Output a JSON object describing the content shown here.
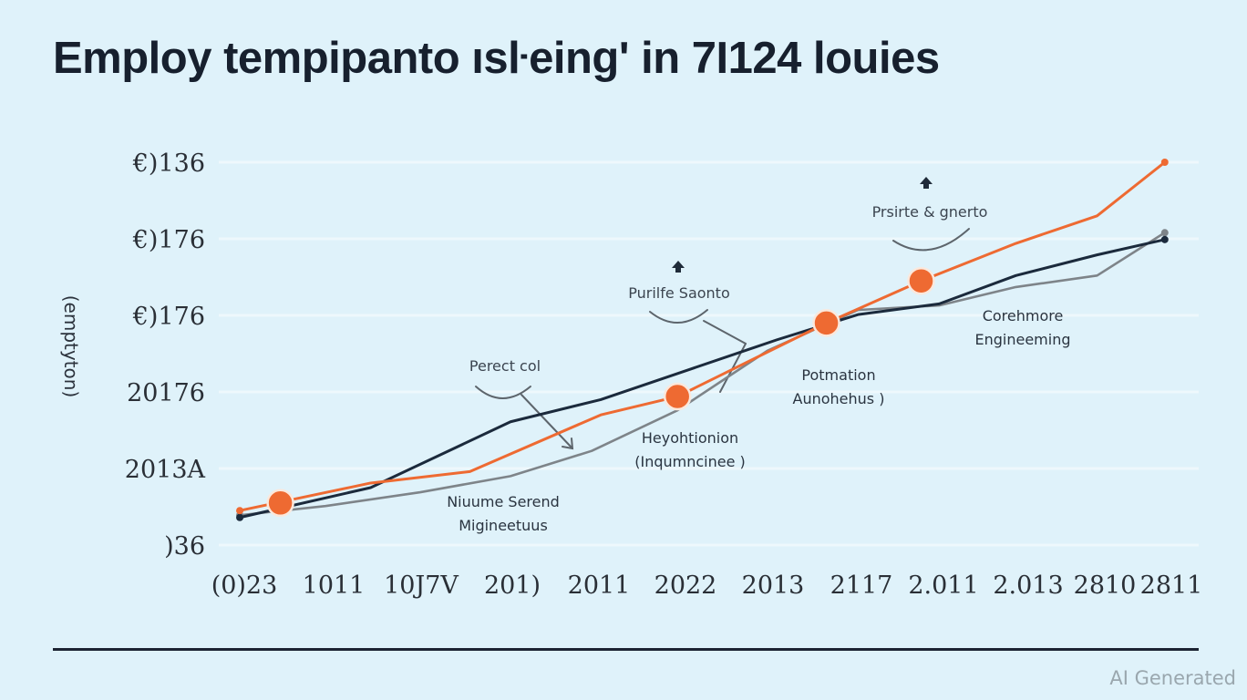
{
  "chart_data": {
    "type": "line",
    "title": "Employ tempipanto ısŀeing' in 7I124 louies",
    "xlabel": "",
    "ylabel": "(emptyton)",
    "categories": [
      "(0)23",
      "1011",
      "10J7V",
      "201)",
      "2011",
      "2022",
      "2013",
      "2117",
      "2.011",
      "2.013",
      "2810",
      "2811"
    ],
    "y_ticks": [
      ")36",
      "2013A",
      "20176",
      "€)176",
      "€)176",
      "€)136"
    ],
    "y_tick_labels_top_to_bottom": [
      "€)136",
      "€)176",
      "€)176",
      "20176",
      "2013A",
      ")36"
    ],
    "ylim": [
      0,
      5.2
    ],
    "xlim": [
      -0.15,
      11
    ],
    "grid": true,
    "colors": {
      "background": "#dff2fa",
      "orange": "#ee6a32",
      "navy": "#1b2a3c",
      "gray": "#7e8489",
      "grid": "#eef8fc",
      "annotation": "#5d656c"
    },
    "series": [
      {
        "name": "orange",
        "color": "#ee6a32",
        "points": [
          [
            -0.05,
            0.45
          ],
          [
            1.4,
            0.81
          ],
          [
            2.5,
            0.96
          ],
          [
            3.95,
            1.7
          ],
          [
            4.8,
            1.94
          ],
          [
            6.45,
            2.9
          ],
          [
            7.5,
            3.45
          ],
          [
            8.55,
            3.94
          ],
          [
            9.45,
            4.3
          ],
          [
            10.2,
            5.0
          ]
        ]
      },
      {
        "name": "navy",
        "color": "#1b2a3c",
        "points": [
          [
            -0.05,
            0.36
          ],
          [
            1.4,
            0.75
          ],
          [
            2.95,
            1.61
          ],
          [
            3.95,
            1.9
          ],
          [
            4.95,
            2.3
          ],
          [
            5.9,
            2.68
          ],
          [
            6.8,
            3.01
          ],
          [
            7.7,
            3.15
          ],
          [
            8.55,
            3.52
          ],
          [
            9.45,
            3.79
          ],
          [
            10.2,
            3.99
          ]
        ]
      },
      {
        "name": "gray",
        "color": "#7e8489",
        "points": [
          [
            -0.05,
            0.39
          ],
          [
            0.9,
            0.51
          ],
          [
            1.95,
            0.69
          ],
          [
            2.95,
            0.9
          ],
          [
            3.85,
            1.23
          ],
          [
            4.8,
            1.76
          ],
          [
            5.8,
            2.54
          ],
          [
            6.8,
            3.07
          ],
          [
            7.7,
            3.13
          ],
          [
            8.55,
            3.37
          ],
          [
            9.45,
            3.52
          ],
          [
            10.2,
            4.08
          ]
        ]
      }
    ],
    "highlight_points": [
      {
        "series": "orange",
        "x": 0.4,
        "y": 0.55
      },
      {
        "series": "orange",
        "x": 4.8,
        "y": 1.94
      },
      {
        "series": "orange",
        "x": 6.45,
        "y": 2.9
      },
      {
        "series": "orange",
        "x": 7.5,
        "y": 3.45
      }
    ],
    "annotations": [
      {
        "id": "perect",
        "lines": [
          "Perect col"
        ]
      },
      {
        "id": "purilfe",
        "lines": [
          "Purilfe Saonto"
        ]
      },
      {
        "id": "prsirte",
        "lines": [
          "Prsirte & gnerto"
        ]
      },
      {
        "id": "niuume",
        "lines": [
          "Niuume Serend",
          "Migineetuus"
        ]
      },
      {
        "id": "heyoh",
        "lines": [
          "Heyohtionion",
          "(Inqumncinee )"
        ]
      },
      {
        "id": "potmation",
        "lines": [
          "Potmation",
          "Aunohehus )"
        ]
      },
      {
        "id": "corehmore",
        "lines": [
          "Corehmore",
          "Engineeming"
        ]
      }
    ]
  },
  "watermark": "AI Generated"
}
